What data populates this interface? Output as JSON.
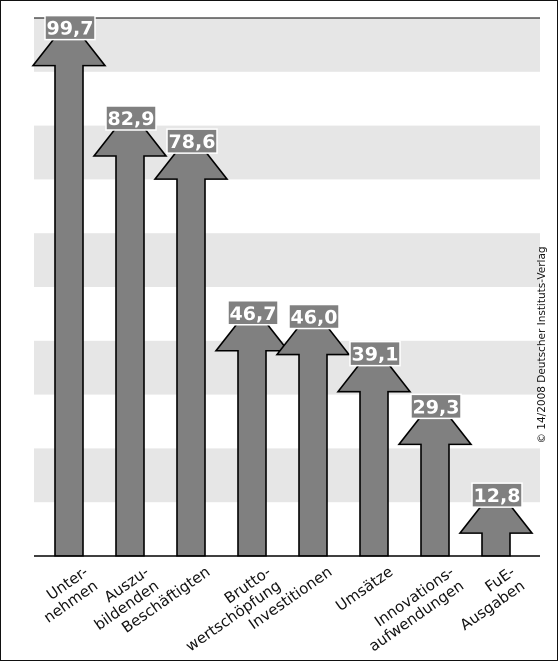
{
  "chart_data": {
    "type": "bar",
    "bar_style": "arrow",
    "categories": [
      [
        "Unter-",
        "nehmen"
      ],
      [
        "Auszu-",
        "bildenden"
      ],
      [
        "Beschäftigten"
      ],
      [
        "Brutto-",
        "wertschöpfung"
      ],
      [
        "Investitionen"
      ],
      [
        "Umsätze"
      ],
      [
        "Innovations-",
        "aufwendungen"
      ],
      [
        "FuE-",
        "Ausgaben"
      ]
    ],
    "values": [
      99.7,
      82.9,
      78.6,
      46.7,
      46.0,
      39.1,
      29.3,
      12.8
    ],
    "value_labels": [
      "99,7",
      "82,9",
      "78,6",
      "46,7",
      "46,0",
      "39,1",
      "29,3",
      "12,8"
    ],
    "ylim": [
      0,
      100
    ],
    "grid": "alternating horizontal bands",
    "colors": {
      "bar": "#808080",
      "band": "#e6e6e6",
      "outline": "#000000",
      "label_box": "#808080"
    }
  },
  "credit": "© 14/2008 Deutscher Instituts-Verlag"
}
